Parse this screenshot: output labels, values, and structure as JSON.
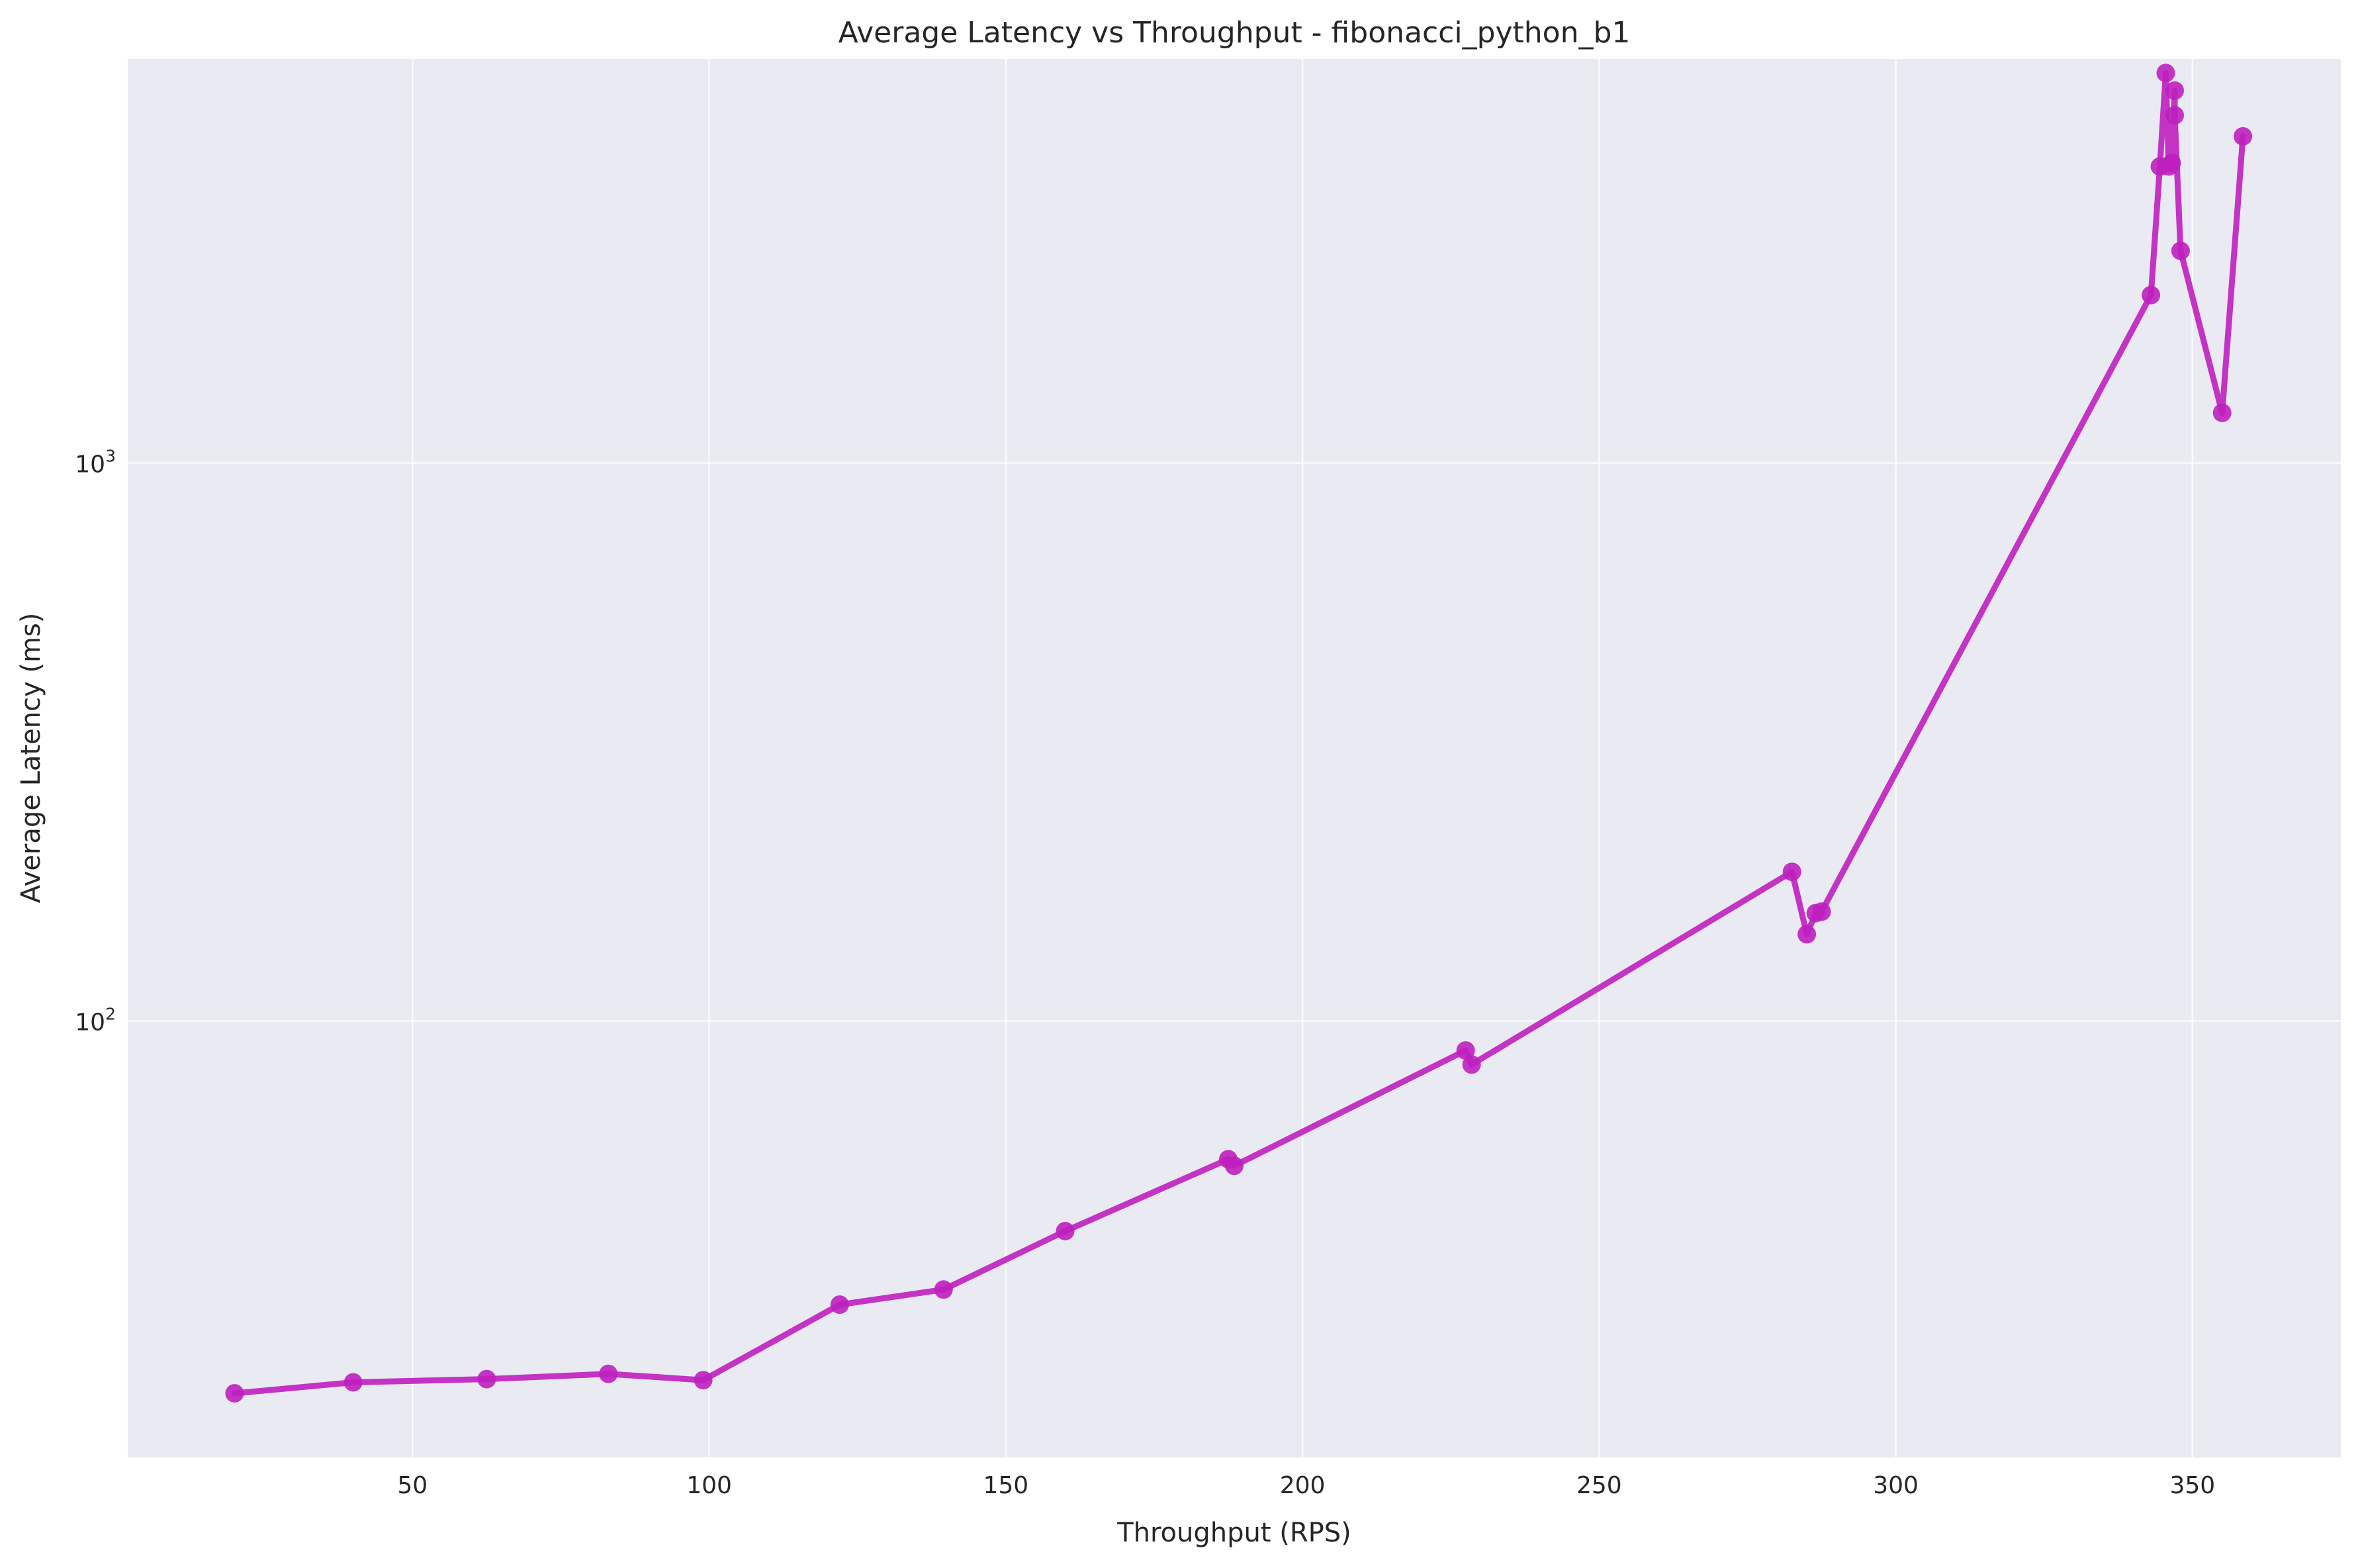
{
  "chart_data": {
    "type": "line",
    "title": "Average Latency vs Throughput - fibonacci_python_b1",
    "xlabel": "Throughput (RPS)",
    "ylabel": "Average Latency (ms)",
    "xlim": [
      2,
      375
    ],
    "ylim": [
      16.5,
      5300
    ],
    "yscale": "log",
    "grid": true,
    "x_ticks": [
      50,
      100,
      150,
      200,
      250,
      300,
      350
    ],
    "y_ticks": [
      {
        "value": 100,
        "base": "10",
        "exp": "2"
      },
      {
        "value": 1000,
        "base": "10",
        "exp": "3"
      }
    ],
    "colors": {
      "background": "#eaeaf2",
      "grid": "#ffffff",
      "line": "#bf1fbf",
      "marker": "#bf1fbf"
    },
    "series": [
      {
        "x": [
          20,
          40,
          62.5,
          83,
          99,
          122,
          139.5,
          160,
          187.5,
          188.5,
          227.5,
          228.5,
          282.5,
          285,
          286.5,
          287.5,
          343,
          344.5,
          345.5,
          346,
          346.5,
          347,
          347,
          348,
          355,
          358.5
        ],
        "y": [
          21.5,
          22.5,
          22.8,
          23.3,
          22.7,
          31,
          33,
          42,
          56.5,
          55,
          88.5,
          83.5,
          185,
          143,
          156,
          157,
          2000,
          3400,
          5000,
          3400,
          3450,
          4650,
          4200,
          2400,
          1230,
          3850
        ]
      }
    ]
  }
}
